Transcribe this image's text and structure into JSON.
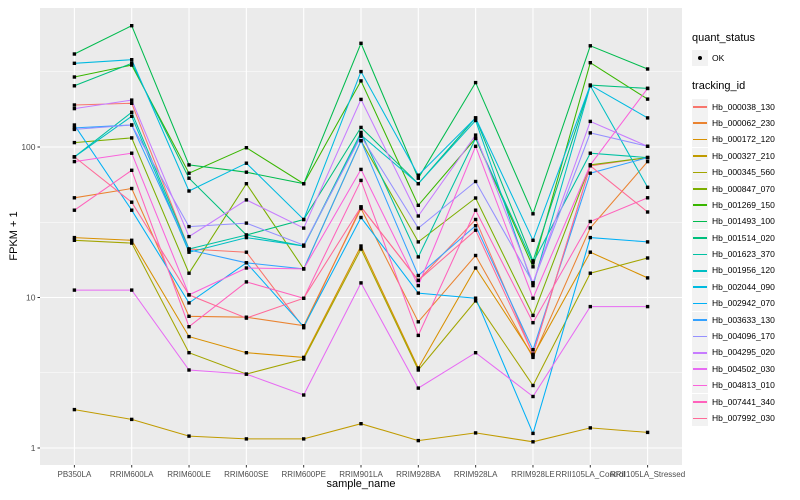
{
  "panel": {
    "bg": "#EBEBEB",
    "grid_color": "#FFFFFF",
    "tick_label_color": "#4D4D4D",
    "tick_mark_color": "#333333",
    "key_bg": "#F2F2F2",
    "point_color": "#000000"
  },
  "legend": {
    "quant_status": {
      "title": "quant_status",
      "items": [
        {
          "label": "OK",
          "marker": "black-point"
        }
      ]
    },
    "tracking": {
      "title": "tracking_id"
    }
  },
  "chart_data": {
    "type": "line",
    "title": "",
    "xlabel": "sample_name",
    "ylabel": "FPKM + 1",
    "yscale": "log10",
    "ylim": [
      0.77,
      840
    ],
    "y_ticks": [
      1,
      10,
      100
    ],
    "y_minor_ticks": [
      3.162,
      31.62,
      316.2
    ],
    "grid": true,
    "legend_position": "right",
    "marker": "small-black-square",
    "categories": [
      "PB350LA",
      "RRIM600LA",
      "RRIM600LE",
      "RRIM600SE",
      "RRIM600PE",
      "RRIM901LA",
      "RRIM928BA",
      "RRIM928LA",
      "RRIM928LE",
      "RRII105LA_Control",
      "RRII105LA_Stressed"
    ],
    "series": [
      {
        "name": "Hb_000038_130",
        "color": "#F8766D",
        "values": [
          190,
          195,
          21,
          20,
          6.3,
          40,
          13,
          33,
          4.2,
          75,
          85
        ]
      },
      {
        "name": "Hb_000062_230",
        "color": "#EA8331",
        "values": [
          46,
          53,
          7.5,
          7.4,
          6.5,
          39,
          6.9,
          19,
          4.0,
          29,
          80
        ]
      },
      {
        "name": "Hb_000172_120",
        "color": "#D89000",
        "values": [
          25,
          24,
          5.5,
          4.3,
          4.0,
          22,
          3.4,
          15.7,
          4.1,
          20,
          13.5
        ]
      },
      {
        "name": "Hb_000327_210",
        "color": "#C09B00",
        "values": [
          1.8,
          1.55,
          1.2,
          1.15,
          1.15,
          1.45,
          1.12,
          1.26,
          1.1,
          1.36,
          1.27
        ]
      },
      {
        "name": "Hb_000345_560",
        "color": "#A3A500",
        "values": [
          24,
          23,
          4.3,
          3.1,
          3.9,
          21,
          3.3,
          9.5,
          2.6,
          14.5,
          18.3
        ]
      },
      {
        "name": "Hb_000847_070",
        "color": "#7CAE00",
        "values": [
          107,
          115,
          14.5,
          57,
          15.5,
          110,
          23.4,
          45.8,
          7.6,
          76,
          85
        ]
      },
      {
        "name": "Hb_001269_150",
        "color": "#39B600",
        "values": [
          292,
          350,
          67,
          99,
          57,
          275,
          41,
          114,
          16,
          363,
          208
        ]
      },
      {
        "name": "Hb_001493_100",
        "color": "#00BB4E",
        "values": [
          415,
          640,
          76,
          68,
          57,
          489,
          62,
          268,
          36,
          470,
          330
        ]
      },
      {
        "name": "Hb_001514_020",
        "color": "#00BF7D",
        "values": [
          255,
          360,
          62,
          26,
          33,
          135,
          57,
          156,
          17.5,
          258,
          245
        ]
      },
      {
        "name": "Hb_001623_370",
        "color": "#00C1A3",
        "values": [
          86,
          170,
          21,
          26,
          22,
          125,
          18.6,
          114,
          17,
          91,
          85
        ]
      },
      {
        "name": "Hb_001956_120",
        "color": "#00BFC4",
        "values": [
          86,
          160,
          20,
          25,
          22,
          120,
          57,
          150,
          12,
          255,
          54
        ]
      },
      {
        "name": "Hb_002044_090",
        "color": "#00BAE0",
        "values": [
          360,
          380,
          51,
          78,
          33,
          317,
          65,
          156,
          24,
          258,
          156
        ]
      },
      {
        "name": "Hb_002942_070",
        "color": "#00B0F6",
        "values": [
          140,
          38,
          9.2,
          17,
          6.4,
          34,
          10.7,
          9.9,
          1.25,
          25,
          23.4
        ]
      },
      {
        "name": "Hb_003633_130",
        "color": "#35A2FF",
        "values": [
          134,
          140,
          20.7,
          17,
          15.5,
          110,
          14,
          30,
          4.5,
          67,
          85
        ]
      },
      {
        "name": "Hb_004096_170",
        "color": "#9590FF",
        "values": [
          131,
          140,
          29.6,
          31.2,
          22.3,
          118,
          28.9,
          59,
          12.5,
          124,
          101
        ]
      },
      {
        "name": "Hb_004295_020",
        "color": "#C77CFF",
        "values": [
          180,
          205,
          25.4,
          44.5,
          28.9,
          207,
          34.8,
          120,
          12.5,
          148,
          101
        ]
      },
      {
        "name": "Hb_004502_030",
        "color": "#E76BF3",
        "values": [
          11.2,
          11.2,
          3.3,
          3.1,
          2.25,
          12.5,
          2.5,
          4.3,
          2.2,
          8.7,
          8.7
        ]
      },
      {
        "name": "Hb_004813_010",
        "color": "#FA62DB",
        "values": [
          80,
          91,
          10.4,
          15.7,
          15.5,
          71,
          12,
          101,
          9.9,
          76,
          245
        ]
      },
      {
        "name": "Hb_007441_340",
        "color": "#FF62BC",
        "values": [
          38,
          70,
          6.4,
          12.7,
          9.9,
          60,
          5.6,
          38,
          6.8,
          32,
          46
        ]
      },
      {
        "name": "Hb_007992_030",
        "color": "#FF6A98",
        "values": [
          86,
          43,
          10.4,
          7.3,
          9.9,
          40,
          13,
          28,
          4.2,
          75,
          37
        ]
      }
    ]
  }
}
